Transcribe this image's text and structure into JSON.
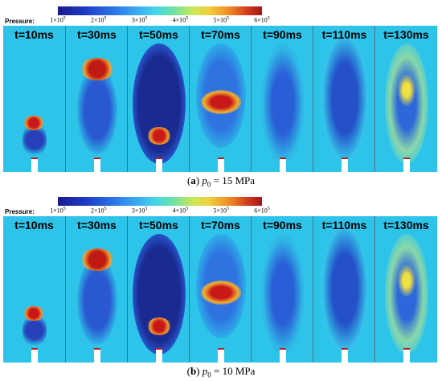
{
  "colorbar": {
    "title": "Pressure:",
    "ticks": [
      {
        "base": "1×10",
        "exp": "5"
      },
      {
        "base": "2×10",
        "exp": "5"
      },
      {
        "base": "3×10",
        "exp": "5"
      },
      {
        "base": "4×10",
        "exp": "5"
      },
      {
        "base": "5×10",
        "exp": "5"
      },
      {
        "base": "6×10",
        "exp": "5"
      }
    ]
  },
  "frames": [
    "t=10ms",
    "t=30ms",
    "t=50ms",
    "t=70ms",
    "t=90ms",
    "t=110ms",
    "t=130ms"
  ],
  "panels": [
    {
      "letter": "a",
      "param": "p",
      "sub": "0",
      "value": " = 15 MPa"
    },
    {
      "letter": "b",
      "param": "p",
      "sub": "0",
      "value": " = 10 MPa"
    }
  ]
}
